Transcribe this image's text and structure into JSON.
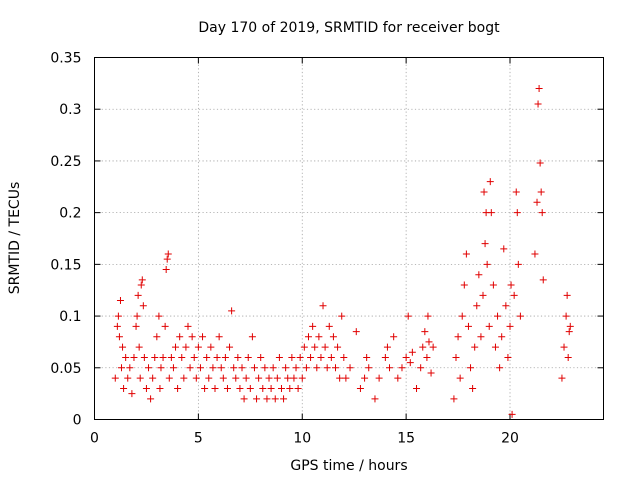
{
  "chart_data": {
    "type": "scatter",
    "title": "Day 170 of 2019, SRMTID for receiver bogt",
    "xlabel": "GPS time / hours",
    "ylabel": "SRMTID / TECUs",
    "xlim": [
      0,
      24.5
    ],
    "ylim": [
      0,
      0.35
    ],
    "xticks": [
      0,
      5,
      10,
      15,
      20
    ],
    "xtick_labels": [
      "0",
      "5",
      "10",
      "15",
      "20"
    ],
    "yticks": [
      0,
      0.05,
      0.1,
      0.15,
      0.2,
      0.25,
      0.3,
      0.35
    ],
    "ytick_labels": [
      "0",
      "0.05",
      "0.1",
      "0.15",
      "0.2",
      "0.25",
      "0.3",
      "0.35"
    ],
    "grid": true,
    "marker": "+",
    "color": "#e00000",
    "series": [
      {
        "name": "SRMTID",
        "points": [
          [
            1.0,
            0.04
          ],
          [
            1.1,
            0.09
          ],
          [
            1.15,
            0.1
          ],
          [
            1.2,
            0.08
          ],
          [
            1.25,
            0.115
          ],
          [
            1.3,
            0.05
          ],
          [
            1.35,
            0.07
          ],
          [
            1.4,
            0.03
          ],
          [
            1.5,
            0.06
          ],
          [
            1.6,
            0.04
          ],
          [
            1.7,
            0.05
          ],
          [
            1.8,
            0.025
          ],
          [
            1.9,
            0.06
          ],
          [
            2.0,
            0.09
          ],
          [
            2.05,
            0.1
          ],
          [
            2.1,
            0.12
          ],
          [
            2.15,
            0.07
          ],
          [
            2.2,
            0.04
          ],
          [
            2.25,
            0.13
          ],
          [
            2.3,
            0.135
          ],
          [
            2.35,
            0.11
          ],
          [
            2.4,
            0.06
          ],
          [
            2.5,
            0.03
          ],
          [
            2.6,
            0.05
          ],
          [
            2.7,
            0.02
          ],
          [
            2.8,
            0.04
          ],
          [
            2.9,
            0.06
          ],
          [
            3.0,
            0.08
          ],
          [
            3.1,
            0.1
          ],
          [
            3.15,
            0.03
          ],
          [
            3.2,
            0.05
          ],
          [
            3.3,
            0.06
          ],
          [
            3.4,
            0.09
          ],
          [
            3.45,
            0.145
          ],
          [
            3.5,
            0.155
          ],
          [
            3.55,
            0.16
          ],
          [
            3.6,
            0.04
          ],
          [
            3.7,
            0.06
          ],
          [
            3.8,
            0.05
          ],
          [
            3.9,
            0.07
          ],
          [
            4.0,
            0.03
          ],
          [
            4.1,
            0.08
          ],
          [
            4.2,
            0.06
          ],
          [
            4.3,
            0.04
          ],
          [
            4.4,
            0.07
          ],
          [
            4.5,
            0.09
          ],
          [
            4.6,
            0.05
          ],
          [
            4.7,
            0.08
          ],
          [
            4.8,
            0.06
          ],
          [
            4.9,
            0.04
          ],
          [
            5.0,
            0.07
          ],
          [
            5.1,
            0.05
          ],
          [
            5.2,
            0.08
          ],
          [
            5.3,
            0.03
          ],
          [
            5.4,
            0.06
          ],
          [
            5.5,
            0.04
          ],
          [
            5.6,
            0.07
          ],
          [
            5.7,
            0.05
          ],
          [
            5.8,
            0.03
          ],
          [
            5.9,
            0.06
          ],
          [
            6.0,
            0.08
          ],
          [
            6.1,
            0.05
          ],
          [
            6.2,
            0.04
          ],
          [
            6.3,
            0.06
          ],
          [
            6.4,
            0.03
          ],
          [
            6.5,
            0.07
          ],
          [
            6.6,
            0.105
          ],
          [
            6.7,
            0.05
          ],
          [
            6.8,
            0.04
          ],
          [
            6.9,
            0.06
          ],
          [
            7.0,
            0.03
          ],
          [
            7.1,
            0.05
          ],
          [
            7.2,
            0.02
          ],
          [
            7.3,
            0.04
          ],
          [
            7.4,
            0.06
          ],
          [
            7.5,
            0.03
          ],
          [
            7.6,
            0.08
          ],
          [
            7.7,
            0.05
          ],
          [
            7.8,
            0.02
          ],
          [
            7.9,
            0.04
          ],
          [
            8.0,
            0.06
          ],
          [
            8.1,
            0.03
          ],
          [
            8.2,
            0.05
          ],
          [
            8.3,
            0.02
          ],
          [
            8.4,
            0.04
          ],
          [
            8.5,
            0.03
          ],
          [
            8.6,
            0.05
          ],
          [
            8.7,
            0.02
          ],
          [
            8.8,
            0.04
          ],
          [
            8.9,
            0.06
          ],
          [
            9.0,
            0.03
          ],
          [
            9.1,
            0.02
          ],
          [
            9.2,
            0.05
          ],
          [
            9.3,
            0.04
          ],
          [
            9.4,
            0.03
          ],
          [
            9.5,
            0.06
          ],
          [
            9.6,
            0.04
          ],
          [
            9.7,
            0.05
          ],
          [
            9.8,
            0.03
          ],
          [
            9.9,
            0.06
          ],
          [
            10.0,
            0.04
          ],
          [
            10.1,
            0.07
          ],
          [
            10.2,
            0.05
          ],
          [
            10.3,
            0.08
          ],
          [
            10.4,
            0.06
          ],
          [
            10.5,
            0.09
          ],
          [
            10.6,
            0.07
          ],
          [
            10.7,
            0.05
          ],
          [
            10.8,
            0.08
          ],
          [
            10.9,
            0.06
          ],
          [
            11.0,
            0.11
          ],
          [
            11.1,
            0.07
          ],
          [
            11.2,
            0.05
          ],
          [
            11.3,
            0.09
          ],
          [
            11.4,
            0.06
          ],
          [
            11.5,
            0.08
          ],
          [
            11.6,
            0.05
          ],
          [
            11.7,
            0.07
          ],
          [
            11.8,
            0.04
          ],
          [
            11.9,
            0.1
          ],
          [
            12.0,
            0.06
          ],
          [
            12.1,
            0.04
          ],
          [
            12.3,
            0.05
          ],
          [
            12.6,
            0.085
          ],
          [
            12.8,
            0.03
          ],
          [
            13.0,
            0.04
          ],
          [
            13.1,
            0.06
          ],
          [
            13.2,
            0.05
          ],
          [
            13.5,
            0.02
          ],
          [
            13.7,
            0.04
          ],
          [
            14.0,
            0.06
          ],
          [
            14.1,
            0.07
          ],
          [
            14.2,
            0.05
          ],
          [
            14.4,
            0.08
          ],
          [
            14.6,
            0.04
          ],
          [
            14.8,
            0.05
          ],
          [
            15.0,
            0.06
          ],
          [
            15.1,
            0.1
          ],
          [
            15.2,
            0.055
          ],
          [
            15.3,
            0.065
          ],
          [
            15.5,
            0.03
          ],
          [
            15.7,
            0.05
          ],
          [
            15.8,
            0.07
          ],
          [
            15.9,
            0.085
          ],
          [
            16.0,
            0.06
          ],
          [
            16.05,
            0.1
          ],
          [
            16.1,
            0.075
          ],
          [
            16.2,
            0.045
          ],
          [
            16.3,
            0.07
          ],
          [
            17.3,
            0.02
          ],
          [
            17.4,
            0.06
          ],
          [
            17.5,
            0.08
          ],
          [
            17.6,
            0.04
          ],
          [
            17.7,
            0.1
          ],
          [
            17.8,
            0.13
          ],
          [
            17.9,
            0.16
          ],
          [
            18.0,
            0.09
          ],
          [
            18.1,
            0.05
          ],
          [
            18.2,
            0.03
          ],
          [
            18.3,
            0.07
          ],
          [
            18.4,
            0.11
          ],
          [
            18.5,
            0.14
          ],
          [
            18.6,
            0.08
          ],
          [
            18.7,
            0.12
          ],
          [
            18.75,
            0.22
          ],
          [
            18.8,
            0.17
          ],
          [
            18.85,
            0.2
          ],
          [
            18.9,
            0.15
          ],
          [
            19.0,
            0.09
          ],
          [
            19.05,
            0.23
          ],
          [
            19.1,
            0.2
          ],
          [
            19.2,
            0.13
          ],
          [
            19.3,
            0.07
          ],
          [
            19.4,
            0.1
          ],
          [
            19.5,
            0.05
          ],
          [
            19.6,
            0.08
          ],
          [
            19.7,
            0.165
          ],
          [
            19.8,
            0.11
          ],
          [
            19.9,
            0.06
          ],
          [
            20.0,
            0.09
          ],
          [
            20.05,
            0.13
          ],
          [
            20.1,
            0.005
          ],
          [
            20.2,
            0.12
          ],
          [
            20.3,
            0.22
          ],
          [
            20.35,
            0.2
          ],
          [
            20.4,
            0.15
          ],
          [
            20.5,
            0.1
          ],
          [
            21.2,
            0.16
          ],
          [
            21.3,
            0.21
          ],
          [
            21.35,
            0.305
          ],
          [
            21.4,
            0.32
          ],
          [
            21.45,
            0.248
          ],
          [
            21.5,
            0.22
          ],
          [
            21.55,
            0.2
          ],
          [
            21.6,
            0.135
          ],
          [
            22.5,
            0.04
          ],
          [
            22.6,
            0.07
          ],
          [
            22.7,
            0.1
          ],
          [
            22.75,
            0.12
          ],
          [
            22.8,
            0.06
          ],
          [
            22.85,
            0.085
          ],
          [
            22.9,
            0.09
          ]
        ]
      }
    ]
  }
}
